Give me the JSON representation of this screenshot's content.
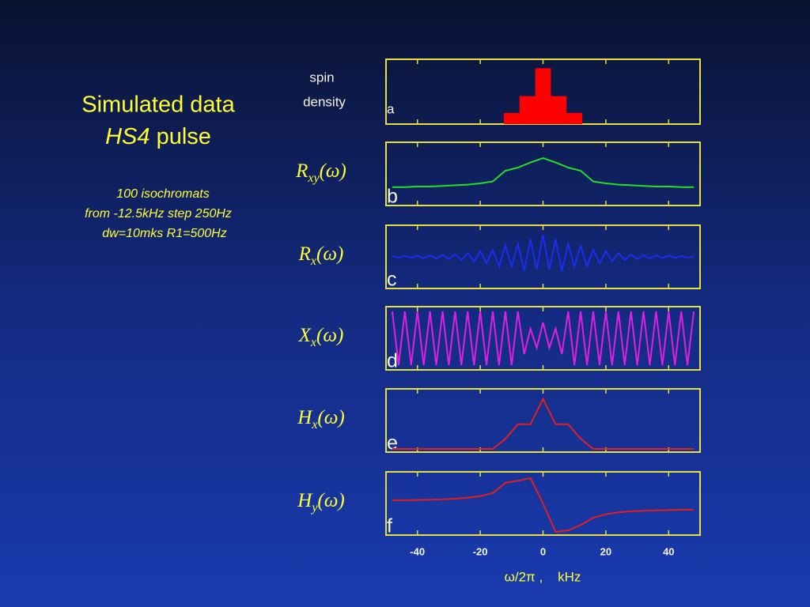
{
  "title": {
    "line1": "Simulated data",
    "line2_italic": "HS4",
    "line2_rest": "pulse"
  },
  "notes": [
    "100 isochromats",
    "from -12.5kHz step 250Hz",
    "dw=10mks R1=500Hz"
  ],
  "chart_data": [
    {
      "type": "histogram",
      "label_lines": [
        "spin",
        "density"
      ],
      "letter": "a",
      "color": "#ff0000",
      "bins": [
        -12.5,
        -7.5,
        -2.5,
        2.5,
        7.5,
        12.5
      ],
      "counts": [
        1,
        2.5,
        5,
        2.5,
        1
      ],
      "xlim": [
        -50,
        50
      ],
      "ylim": [
        0,
        5.8
      ],
      "xticks": [
        -40,
        -20,
        0,
        20,
        40
      ]
    },
    {
      "type": "line",
      "label": {
        "main": "R",
        "sub": "xy",
        "arg": "(ω)"
      },
      "letter": "b",
      "color": "#22e022",
      "x": [
        -48,
        -44,
        -40,
        -36,
        -32,
        -28,
        -24,
        -20,
        -16,
        -12,
        -8,
        -4,
        0,
        4,
        8,
        12,
        16,
        20,
        24,
        28,
        32,
        36,
        40,
        44,
        48
      ],
      "values": [
        0.29,
        0.29,
        0.3,
        0.3,
        0.31,
        0.32,
        0.33,
        0.35,
        0.38,
        0.55,
        0.6,
        0.68,
        0.75,
        0.68,
        0.6,
        0.55,
        0.38,
        0.35,
        0.33,
        0.32,
        0.31,
        0.3,
        0.3,
        0.29,
        0.29
      ],
      "xlim": [
        -50,
        50
      ],
      "ylim": [
        0,
        1
      ],
      "xticks": [
        -40,
        -20,
        0,
        20,
        40
      ]
    },
    {
      "type": "line",
      "label": {
        "main": "R",
        "sub": "x",
        "arg": "(ω)"
      },
      "letter": "c",
      "color": "#1a2cf0",
      "x": [
        -48,
        -46,
        -44,
        -42,
        -40,
        -38,
        -36,
        -34,
        -32,
        -30,
        -28,
        -26,
        -24,
        -22,
        -20,
        -18,
        -16,
        -14,
        -12,
        -10,
        -8,
        -6,
        -4,
        -2,
        0,
        2,
        4,
        6,
        8,
        10,
        12,
        14,
        16,
        18,
        20,
        22,
        24,
        26,
        28,
        30,
        32,
        34,
        36,
        38,
        40,
        42,
        44,
        46,
        48
      ],
      "values": [
        0.02,
        -0.02,
        0.03,
        -0.03,
        0.04,
        -0.04,
        0.05,
        -0.05,
        0.06,
        -0.07,
        0.08,
        -0.1,
        0.12,
        -0.15,
        0.18,
        -0.2,
        0.22,
        -0.3,
        0.35,
        -0.3,
        0.4,
        -0.45,
        0.55,
        -0.4,
        0.7,
        -0.4,
        0.55,
        -0.45,
        0.4,
        -0.3,
        0.35,
        -0.3,
        0.22,
        -0.2,
        0.18,
        -0.15,
        0.12,
        -0.1,
        0.08,
        -0.07,
        0.06,
        -0.05,
        0.05,
        -0.04,
        0.04,
        -0.03,
        0.03,
        -0.02,
        0.02
      ],
      "xlim": [
        -50,
        50
      ],
      "ylim": [
        -1,
        1
      ],
      "xticks": [
        -40,
        -20,
        0,
        20,
        40
      ]
    },
    {
      "type": "line",
      "label": {
        "main": "X",
        "sub": "x",
        "arg": "(ω)"
      },
      "letter": "d",
      "color": "#e020e0",
      "x": [
        -48,
        -46,
        -44,
        -42,
        -40,
        -38,
        -36,
        -34,
        -32,
        -30,
        -28,
        -26,
        -24,
        -22,
        -20,
        -18,
        -16,
        -14,
        -12,
        -10,
        -8,
        -6,
        -4,
        -2,
        0,
        2,
        4,
        6,
        8,
        10,
        12,
        14,
        16,
        18,
        20,
        22,
        24,
        26,
        28,
        30,
        32,
        34,
        36,
        38,
        40,
        42,
        44,
        46,
        48
      ],
      "values": [
        0.85,
        -0.85,
        0.85,
        -0.85,
        0.85,
        -0.85,
        0.85,
        -0.85,
        0.85,
        -0.85,
        0.85,
        -0.85,
        0.85,
        -0.85,
        0.85,
        -0.85,
        0.85,
        -0.85,
        0.85,
        -0.85,
        0.85,
        -0.5,
        0.3,
        -0.3,
        0.5,
        -0.3,
        0.3,
        -0.5,
        0.85,
        -0.85,
        0.85,
        -0.85,
        0.85,
        -0.85,
        0.85,
        -0.85,
        0.85,
        -0.85,
        0.85,
        -0.85,
        0.85,
        -0.85,
        0.85,
        -0.85,
        0.85,
        -0.85,
        0.85,
        -0.85,
        0.85
      ],
      "xlim": [
        -50,
        50
      ],
      "ylim": [
        -1,
        1
      ],
      "xticks": [
        -40,
        -20,
        0,
        20,
        40
      ]
    },
    {
      "type": "line",
      "label": {
        "main": "H",
        "sub": "x",
        "arg": "(ω)"
      },
      "letter": "e",
      "color": "#e02020",
      "x": [
        -48,
        -44,
        -40,
        -36,
        -32,
        -28,
        -24,
        -20,
        -16,
        -12,
        -8,
        -4,
        0,
        4,
        8,
        12,
        16,
        20,
        24,
        28,
        32,
        36,
        40,
        44,
        48
      ],
      "values": [
        0.05,
        0.05,
        0.05,
        0.05,
        0.05,
        0.05,
        0.05,
        0.05,
        0.05,
        0.21,
        0.44,
        0.44,
        0.84,
        0.44,
        0.44,
        0.21,
        0.05,
        0.05,
        0.05,
        0.05,
        0.05,
        0.05,
        0.05,
        0.05,
        0.05
      ],
      "xlim": [
        -50,
        50
      ],
      "ylim": [
        0,
        1
      ],
      "xticks": [
        -40,
        -20,
        0,
        20,
        40
      ]
    },
    {
      "type": "line",
      "label": {
        "main": "H",
        "sub": "y",
        "arg": "(ω)"
      },
      "letter": "f",
      "color": "#e02020",
      "x": [
        -48,
        -44,
        -40,
        -36,
        -32,
        -28,
        -24,
        -20,
        -16,
        -12,
        -8,
        -4,
        0,
        4,
        8,
        12,
        16,
        20,
        24,
        28,
        32,
        36,
        40,
        44,
        48
      ],
      "values": [
        0.1,
        0.1,
        0.11,
        0.12,
        0.13,
        0.15,
        0.18,
        0.23,
        0.33,
        0.65,
        0.72,
        0.8,
        0,
        -0.9,
        -0.85,
        -0.68,
        -0.45,
        -0.34,
        -0.28,
        -0.25,
        -0.23,
        -0.22,
        -0.21,
        -0.2,
        -0.2
      ],
      "xlim": [
        -50,
        50
      ],
      "ylim": [
        -1,
        1
      ],
      "xticks": [
        -40,
        -20,
        0,
        20,
        40
      ],
      "xlabel": "ω/2π ,    kHz"
    }
  ]
}
